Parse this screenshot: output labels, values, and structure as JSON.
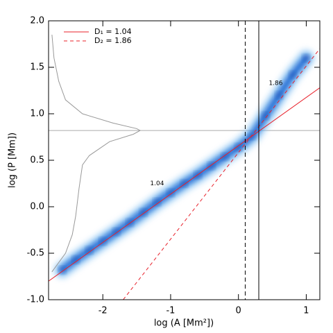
{
  "chart_data": {
    "type": "scatter",
    "x_label": "log (A [Mm²])",
    "y_label": "log (P [Mm])",
    "xlim": [
      -2.8,
      1.2
    ],
    "ylim": [
      -1.0,
      2.0
    ],
    "xticks": [
      -2,
      -1,
      0,
      1
    ],
    "yticks": [
      {
        "value": -1.0,
        "label": "-1.0"
      },
      {
        "value": -0.5,
        "label": "-0.5"
      },
      {
        "value": 0.0,
        "label": "0.0"
      },
      {
        "value": 0.5,
        "label": "0.5"
      },
      {
        "value": 1.0,
        "label": "1.0"
      },
      {
        "value": 1.5,
        "label": "1.5"
      },
      {
        "value": 2.0,
        "label": "2.0"
      }
    ],
    "legend": "upper left",
    "series": [
      {
        "kind": "density",
        "color": "#0d5fd0",
        "x": [
          -2.6,
          -2.4,
          -2.2,
          -2.0,
          -1.8,
          -1.6,
          -1.4,
          -1.2,
          -1.0,
          -0.8,
          -0.6,
          -0.4,
          -0.2,
          0.0,
          0.2,
          0.4,
          0.6,
          0.8,
          1.0
        ],
        "values": [
          -0.68,
          -0.57,
          -0.47,
          -0.37,
          -0.27,
          -0.17,
          -0.06,
          0.05,
          0.15,
          0.25,
          0.34,
          0.44,
          0.54,
          0.64,
          0.76,
          0.98,
          1.2,
          1.42,
          1.6
        ]
      },
      {
        "kind": "line",
        "style": "solid",
        "color": "#999999",
        "x": [
          -2.75,
          -2.72,
          -2.65,
          -2.55,
          -2.3,
          -1.85,
          -1.5,
          -1.45,
          -1.55,
          -1.9,
          -2.2,
          -2.3,
          -2.35,
          -2.4,
          -2.45,
          -2.55,
          -2.75
        ],
        "values": [
          1.85,
          1.6,
          1.35,
          1.15,
          1.0,
          0.9,
          0.84,
          0.82,
          0.78,
          0.7,
          0.55,
          0.45,
          0.2,
          -0.1,
          -0.3,
          -0.5,
          -0.7
        ]
      },
      {
        "kind": "line",
        "name": "D₁ = 1.04",
        "style": "solid",
        "color": "#e8202a",
        "x": [
          -2.8,
          1.2
        ],
        "values": [
          -0.8,
          1.28
        ]
      },
      {
        "kind": "line",
        "name": "D₂ = 1.86",
        "style": "dashed",
        "color": "#e8202a",
        "x": [
          -1.7,
          1.2
        ],
        "values": [
          -1.0,
          1.7
        ]
      }
    ],
    "vlines": [
      {
        "x": 0.1,
        "style": "dashed"
      },
      {
        "x": 0.3,
        "style": "solid"
      }
    ],
    "hlines": [
      {
        "y": 0.82,
        "color": "#aaaaaa"
      }
    ],
    "annotations": [
      {
        "text": "1.04",
        "x": -1.2,
        "y": 0.25
      },
      {
        "text": "1.86",
        "x": 0.55,
        "y": 1.33
      }
    ]
  }
}
